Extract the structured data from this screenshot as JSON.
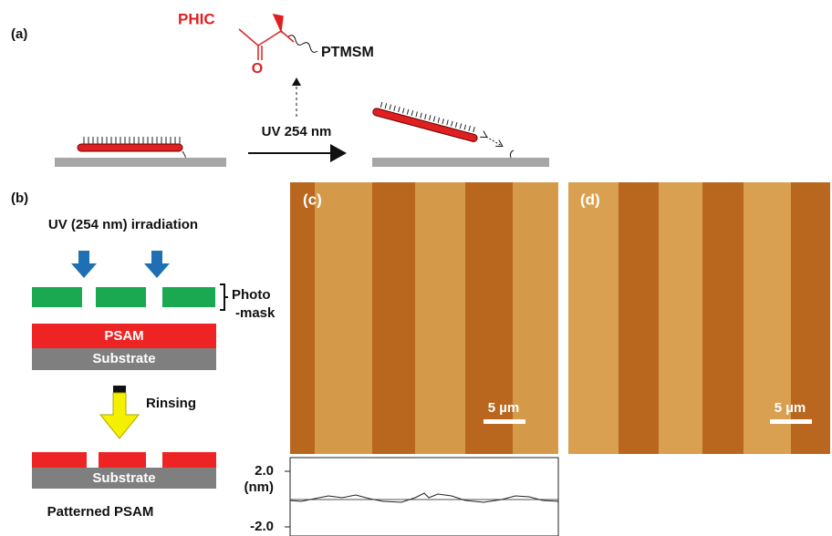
{
  "panel_a": {
    "label": "(a)",
    "group_left": "PHIC",
    "oxygen": "O",
    "group_right": "PTMSM",
    "arrow_label": "UV 254 nm"
  },
  "panel_b": {
    "label": "(b)",
    "irradiation": "UV (254 nm) irradiation",
    "mask_line1": "Photo",
    "mask_line2": "-mask",
    "layer": "PSAM",
    "substrate": "Substrate",
    "step": "Rinsing",
    "substrate_after": "Substrate",
    "result": "Patterned PSAM"
  },
  "panel_c": {
    "label": "(c)",
    "scale": "5 µm"
  },
  "panel_d": {
    "label": "(d)",
    "scale": "5 µm"
  },
  "profile": {
    "top": "2.0",
    "unit": "(nm)",
    "bottom": "-2.0"
  }
}
